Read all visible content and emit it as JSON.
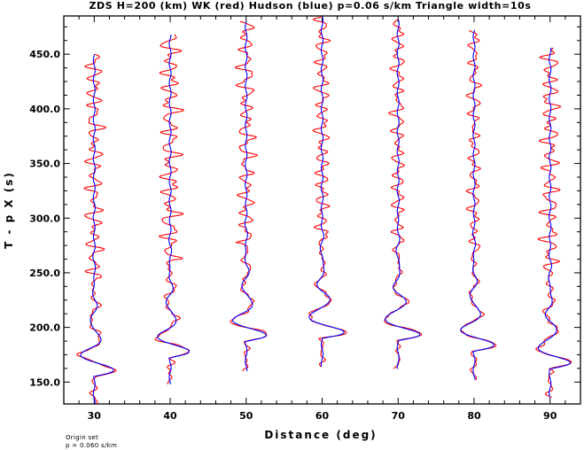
{
  "chart_data": {
    "type": "line",
    "title": "ZDS H=200 (km) WK (red) Hudson (blue) p=0.06 s/km Triangle width=10s",
    "xlabel": "Distance (deg)",
    "ylabel": "T - p X (s)",
    "xlim": [
      26,
      94
    ],
    "ylim": [
      130,
      485
    ],
    "x_ticks": [
      30,
      40,
      50,
      60,
      70,
      80,
      90
    ],
    "x_tick_labels": [
      "30",
      "40",
      "50",
      "60",
      "70",
      "80",
      "90"
    ],
    "y_ticks": [
      150,
      200,
      250,
      300,
      350,
      400,
      450
    ],
    "y_tick_labels": [
      "150.0",
      "200.0",
      "250.0",
      "300.0",
      "350.0",
      "400.0",
      "450.0"
    ],
    "series": [
      {
        "name": "WK (red)",
        "color": "#ff0000"
      },
      {
        "name": "Hudson (blue)",
        "color": "#0000ff"
      }
    ],
    "traces": [
      {
        "distance": 30,
        "t_start": 130,
        "t_end": 450,
        "arrival": 155,
        "amp": 3.6,
        "red_noise": 1.5
      },
      {
        "distance": 40,
        "t_start": 148,
        "t_end": 468,
        "arrival": 172,
        "amp": 3.4,
        "red_noise": 1.8
      },
      {
        "distance": 50,
        "t_start": 160,
        "t_end": 480,
        "arrival": 187,
        "amp": 3.6,
        "red_noise": 1.5
      },
      {
        "distance": 60,
        "t_start": 164,
        "t_end": 484,
        "arrival": 190,
        "amp": 3.9,
        "red_noise": 1.3
      },
      {
        "distance": 70,
        "t_start": 162,
        "t_end": 482,
        "arrival": 188,
        "amp": 3.9,
        "red_noise": 1.2
      },
      {
        "distance": 80,
        "t_start": 152,
        "t_end": 472,
        "arrival": 178,
        "amp": 3.6,
        "red_noise": 1.1
      },
      {
        "distance": 90,
        "t_start": 136,
        "t_end": 456,
        "arrival": 162,
        "amp": 3.5,
        "red_noise": 1.6
      }
    ]
  },
  "footer": {
    "line1": "Origin set",
    "line2": "p = 0.060 s/km"
  }
}
